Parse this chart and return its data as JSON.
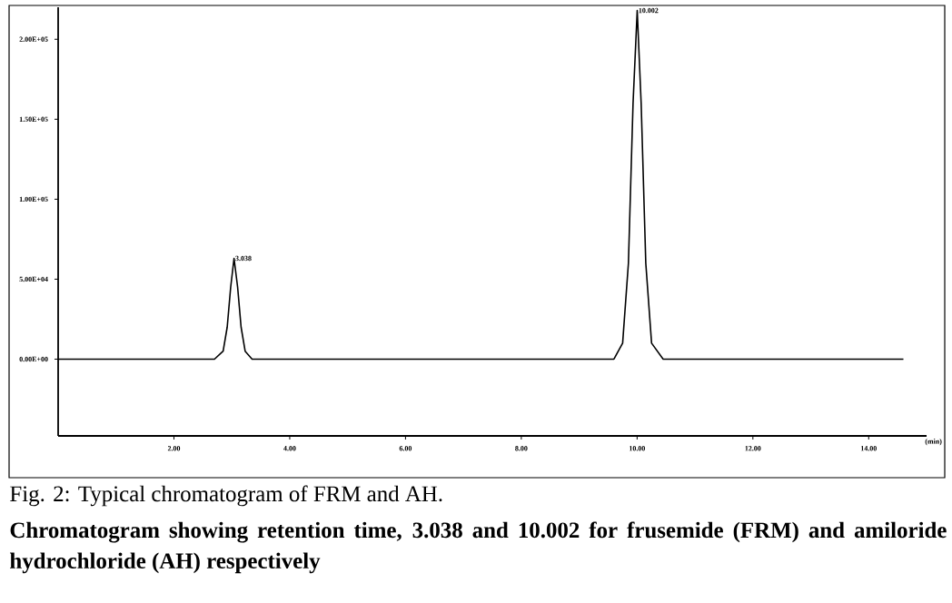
{
  "chart_data": {
    "type": "line",
    "title": "Fig. 2: Typical chromatogram of FRM and AH.",
    "subtitle": "Chromatogram showing retention time, 3.038 and 10.002 for frusemide (FRM) and amiloride hydrochloride (AH) respectively",
    "xlabel": "(min)",
    "series": [
      {
        "color": "#000000",
        "x": [
          0,
          2.7,
          2.85,
          2.92,
          2.98,
          3.038,
          3.1,
          3.16,
          3.23,
          3.35,
          9.6,
          9.75,
          9.85,
          9.93,
          10.002,
          10.07,
          10.15,
          10.25,
          10.45,
          14.6
        ],
        "values": [
          0,
          0,
          5000,
          20000,
          45000,
          63000,
          45000,
          20000,
          5000,
          0,
          0,
          10000,
          60000,
          160000,
          218000,
          160000,
          60000,
          10000,
          0,
          0
        ]
      }
    ],
    "xlim": [
      0,
      15
    ],
    "ylim": [
      -48000,
      220000
    ],
    "xticks": [
      {
        "value": 2,
        "label": "2.00"
      },
      {
        "value": 4,
        "label": "4.00"
      },
      {
        "value": 6,
        "label": "6.00"
      },
      {
        "value": 8,
        "label": "8.00"
      },
      {
        "value": 10,
        "label": "10.00"
      },
      {
        "value": 12,
        "label": "12.00"
      },
      {
        "value": 14,
        "label": "14.00"
      }
    ],
    "yticks": [
      {
        "value": 0,
        "label": "0.00E+00"
      },
      {
        "value": 50000,
        "label": "5.00E+04"
      },
      {
        "value": 100000,
        "label": "1.00E+05"
      },
      {
        "value": 150000,
        "label": "1.50E+05"
      },
      {
        "value": 200000,
        "label": "2.00E+05"
      }
    ],
    "annotations": [
      {
        "text": "3.038",
        "x": 3.038,
        "y": 63000
      },
      {
        "text": "10.002",
        "x": 10.002,
        "y": 218000
      }
    ]
  }
}
